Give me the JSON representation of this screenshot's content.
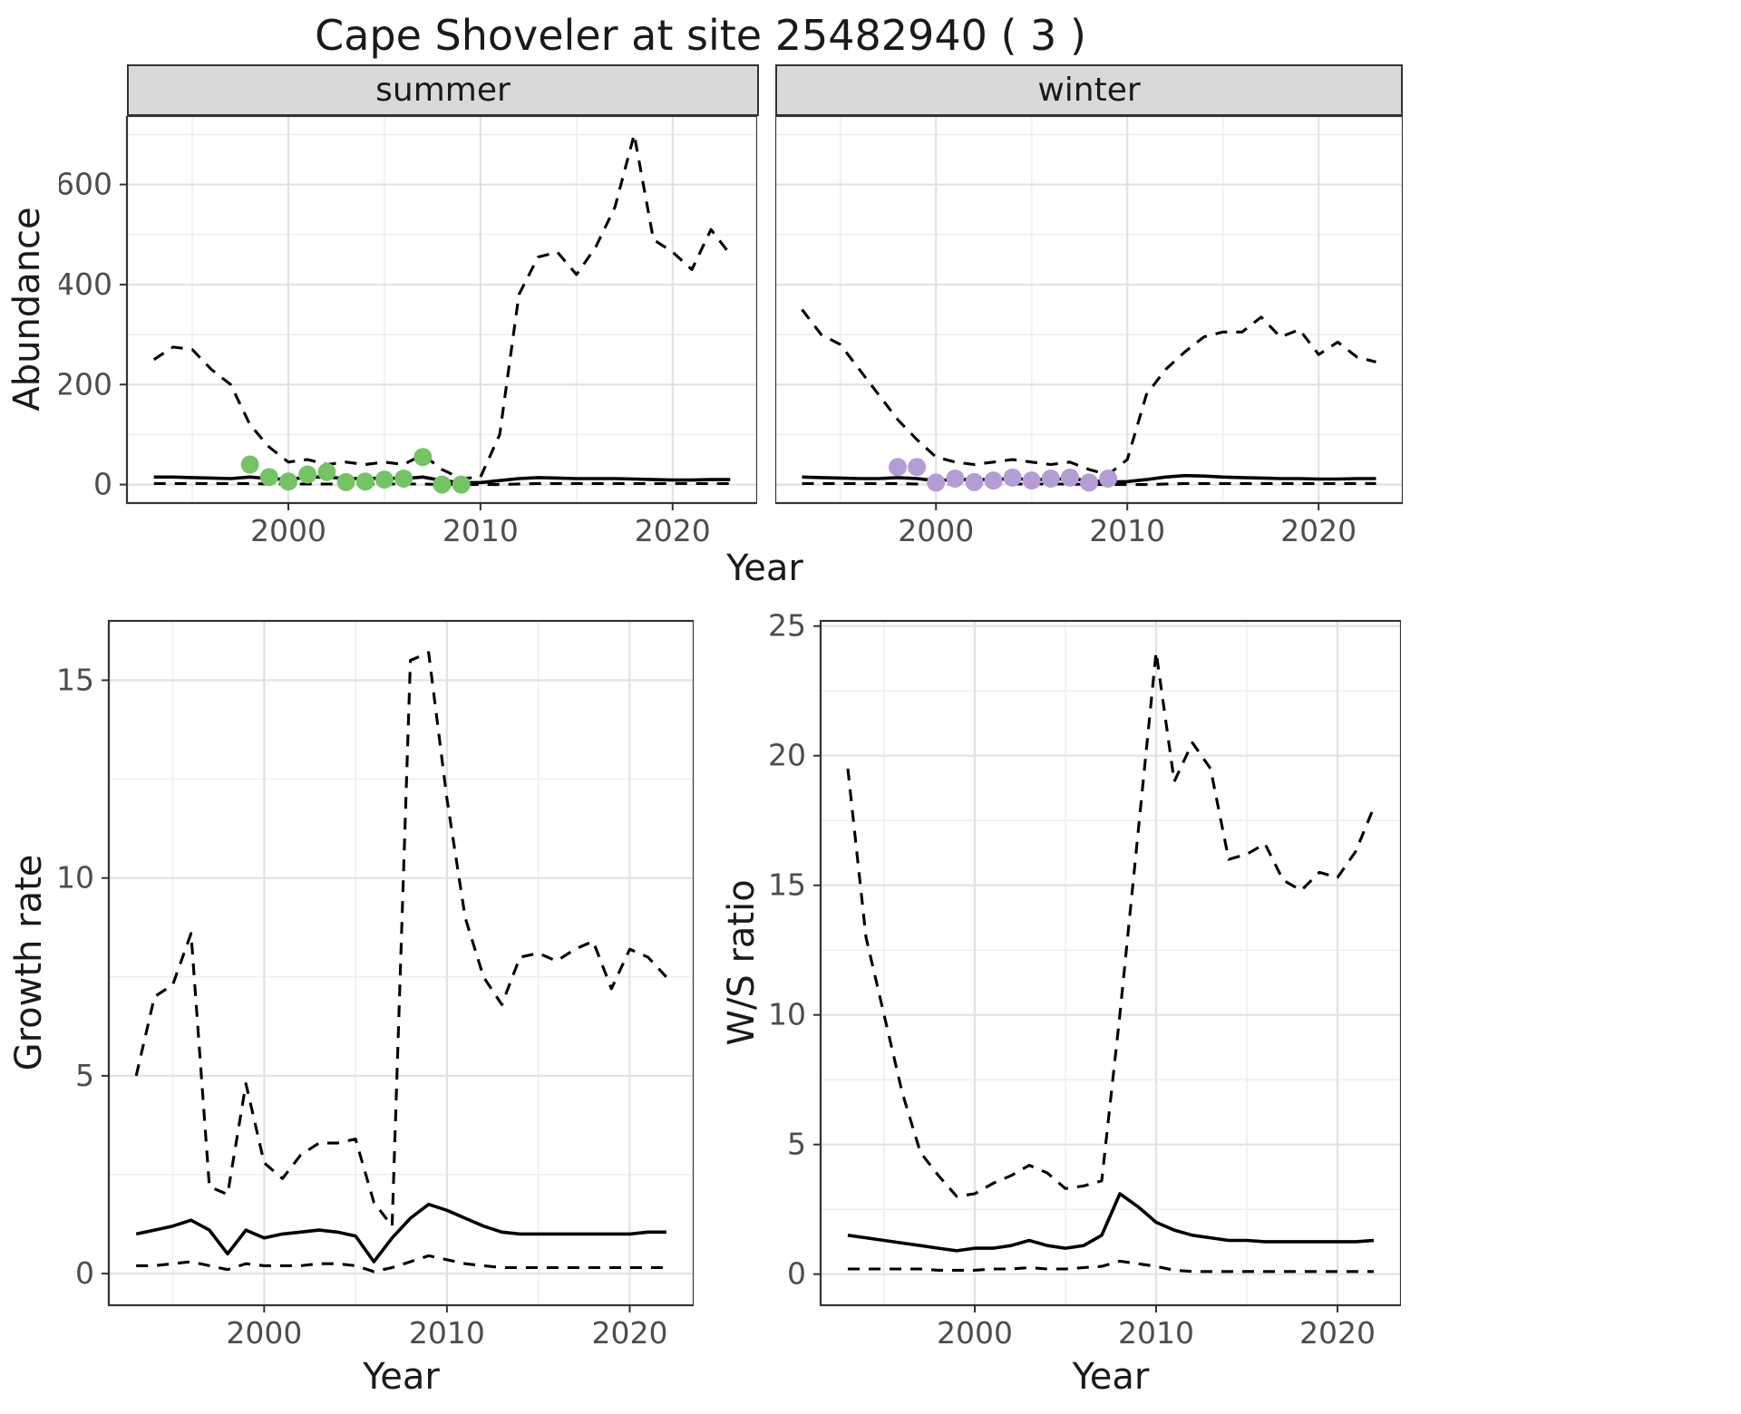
{
  "title": "Cape Shoveler at site 25482940 ( 3 )",
  "facets": {
    "summer_label": "summer",
    "winter_label": "winter"
  },
  "axis_titles": {
    "abundance": "Abundance",
    "year_top": "Year",
    "growth_rate": "Growth rate",
    "ws_ratio": "W/S ratio",
    "year_growth": "Year",
    "year_ws": "Year"
  },
  "colors": {
    "summer_points": "#76c366",
    "winter_points": "#b69cd4",
    "line": "#000000",
    "strip_bg": "#d9d9d9",
    "grid_major": "#e2e2e2",
    "grid_minor": "#efefef",
    "panel_border": "#333333",
    "tick_text": "#4d4d4d"
  },
  "chart_data": [
    {
      "type": "line",
      "name": "abundance-summer",
      "facet": "summer",
      "xlabel": "Year",
      "ylabel": "Abundance",
      "xlim": [
        1991.6,
        2024.4
      ],
      "ylim": [
        -37,
        737
      ],
      "x_ticks": [
        2000,
        2010,
        2020
      ],
      "x_minor": [
        1995,
        2005,
        2015
      ],
      "y_ticks": [
        0,
        200,
        400,
        600
      ],
      "y_minor": [
        100,
        300,
        500,
        700
      ],
      "x": [
        1993,
        1994,
        1995,
        1996,
        1997,
        1998,
        1999,
        2000,
        2001,
        2002,
        2003,
        2004,
        2005,
        2006,
        2007,
        2008,
        2009,
        2010,
        2011,
        2012,
        2013,
        2014,
        2015,
        2016,
        2017,
        2018,
        2019,
        2020,
        2021,
        2022,
        2023
      ],
      "series": [
        {
          "name": "upper-95ci",
          "style": "dashed",
          "values": [
            250,
            275,
            270,
            230,
            200,
            120,
            75,
            45,
            50,
            40,
            45,
            40,
            45,
            40,
            60,
            30,
            12,
            15,
            100,
            380,
            455,
            465,
            420,
            475,
            555,
            700,
            490,
            465,
            430,
            510,
            460
          ]
        },
        {
          "name": "median",
          "style": "solid",
          "values": [
            15,
            15,
            14,
            13,
            12,
            15,
            12,
            10,
            15,
            15,
            12,
            12,
            13,
            12,
            15,
            8,
            4,
            4,
            8,
            12,
            14,
            13,
            12,
            12,
            12,
            11,
            10,
            9,
            9,
            10,
            10
          ]
        },
        {
          "name": "lower-95ci",
          "style": "dashed",
          "values": [
            2,
            2,
            2,
            2,
            2,
            2,
            1,
            1,
            1,
            1,
            1,
            1,
            1,
            1,
            1,
            0,
            0,
            0,
            0,
            1,
            2,
            2,
            2,
            2,
            2,
            2,
            2,
            2,
            2,
            2,
            2
          ]
        },
        {
          "name": "observed-counts",
          "style": "points",
          "color_key": "summer_points",
          "x": [
            1998,
            1999,
            2000,
            2001,
            2002,
            2003,
            2004,
            2005,
            2006,
            2007,
            2008,
            2009
          ],
          "values": [
            40,
            15,
            6,
            20,
            25,
            5,
            6,
            10,
            12,
            55,
            0,
            0
          ]
        }
      ]
    },
    {
      "type": "line",
      "name": "abundance-winter",
      "facet": "winter",
      "xlabel": "Year",
      "ylabel": "Abundance",
      "xlim": [
        1991.6,
        2024.4
      ],
      "ylim": [
        -37,
        737
      ],
      "x_ticks": [
        2000,
        2010,
        2020
      ],
      "x_minor": [
        1995,
        2005,
        2015
      ],
      "y_ticks": [
        0,
        200,
        400,
        600
      ],
      "y_minor": [
        100,
        300,
        500,
        700
      ],
      "x": [
        1993,
        1994,
        1995,
        1996,
        1997,
        1998,
        1999,
        2000,
        2001,
        2002,
        2003,
        2004,
        2005,
        2006,
        2007,
        2008,
        2009,
        2010,
        2011,
        2012,
        2013,
        2014,
        2015,
        2016,
        2017,
        2018,
        2019,
        2020,
        2021,
        2022,
        2023
      ],
      "series": [
        {
          "name": "upper-95ci",
          "style": "dashed",
          "values": [
            350,
            300,
            280,
            230,
            180,
            130,
            90,
            55,
            45,
            40,
            45,
            50,
            45,
            40,
            45,
            30,
            20,
            50,
            180,
            230,
            265,
            295,
            305,
            305,
            335,
            295,
            310,
            260,
            285,
            255,
            245
          ]
        },
        {
          "name": "median",
          "style": "solid",
          "values": [
            15,
            14,
            13,
            12,
            12,
            14,
            12,
            8,
            10,
            10,
            10,
            12,
            10,
            10,
            12,
            8,
            5,
            6,
            10,
            15,
            18,
            17,
            15,
            14,
            13,
            12,
            12,
            11,
            11,
            12,
            12
          ]
        },
        {
          "name": "lower-95ci",
          "style": "dashed",
          "values": [
            2,
            2,
            2,
            2,
            2,
            2,
            1,
            1,
            1,
            1,
            1,
            1,
            1,
            1,
            1,
            0,
            0,
            0,
            0,
            1,
            2,
            2,
            2,
            2,
            2,
            2,
            2,
            2,
            2,
            2,
            2
          ]
        },
        {
          "name": "observed-counts",
          "style": "points",
          "color_key": "winter_points",
          "x": [
            1998,
            1999,
            2000,
            2001,
            2002,
            2003,
            2004,
            2005,
            2006,
            2007,
            2008,
            2009
          ],
          "values": [
            35,
            35,
            4,
            12,
            5,
            8,
            14,
            8,
            12,
            14,
            4,
            12
          ]
        }
      ]
    },
    {
      "type": "line",
      "name": "growth-rate",
      "xlabel": "Year",
      "ylabel": "Growth rate",
      "xlim": [
        1991.5,
        2023.5
      ],
      "ylim": [
        -0.8,
        16.5
      ],
      "x_ticks": [
        2000,
        2010,
        2020
      ],
      "x_minor": [
        1995,
        2005,
        2015
      ],
      "y_ticks": [
        0,
        5,
        10,
        15
      ],
      "y_minor": [
        2.5,
        7.5,
        12.5
      ],
      "x": [
        1993,
        1994,
        1995,
        1996,
        1997,
        1998,
        1999,
        2000,
        2001,
        2002,
        2003,
        2004,
        2005,
        2006,
        2007,
        2008,
        2009,
        2010,
        2011,
        2012,
        2013,
        2014,
        2015,
        2016,
        2017,
        2018,
        2019,
        2020,
        2021,
        2022
      ],
      "series": [
        {
          "name": "upper-95ci",
          "style": "dashed",
          "values": [
            5.0,
            7.0,
            7.3,
            8.6,
            2.2,
            2.0,
            4.8,
            2.8,
            2.4,
            3.0,
            3.3,
            3.3,
            3.4,
            1.8,
            1.2,
            15.5,
            15.7,
            12.0,
            9.0,
            7.5,
            6.8,
            8.0,
            8.1,
            7.9,
            8.2,
            8.4,
            7.2,
            8.2,
            8.0,
            7.5
          ]
        },
        {
          "name": "median",
          "style": "solid",
          "values": [
            1.0,
            1.1,
            1.2,
            1.35,
            1.1,
            0.5,
            1.1,
            0.9,
            1.0,
            1.05,
            1.1,
            1.05,
            0.95,
            0.3,
            0.9,
            1.4,
            1.75,
            1.6,
            1.4,
            1.2,
            1.05,
            1.0,
            1.0,
            1.0,
            1.0,
            1.0,
            1.0,
            1.0,
            1.05,
            1.05
          ]
        },
        {
          "name": "lower-95ci",
          "style": "dashed",
          "values": [
            0.2,
            0.2,
            0.25,
            0.3,
            0.2,
            0.1,
            0.25,
            0.2,
            0.2,
            0.2,
            0.25,
            0.25,
            0.2,
            0.05,
            0.15,
            0.3,
            0.45,
            0.35,
            0.25,
            0.2,
            0.15,
            0.15,
            0.15,
            0.15,
            0.15,
            0.15,
            0.15,
            0.15,
            0.15,
            0.15
          ]
        }
      ]
    },
    {
      "type": "line",
      "name": "ws-ratio",
      "xlabel": "Year",
      "ylabel": "W/S ratio",
      "xlim": [
        1991.5,
        2023.5
      ],
      "ylim": [
        -1.2,
        25.2
      ],
      "x_ticks": [
        2000,
        2010,
        2020
      ],
      "x_minor": [
        1995,
        2005,
        2015
      ],
      "y_ticks": [
        0,
        5,
        10,
        15,
        20,
        25
      ],
      "y_minor": [
        2.5,
        7.5,
        12.5,
        17.5,
        22.5
      ],
      "x": [
        1993,
        1994,
        1995,
        1996,
        1997,
        1998,
        1999,
        2000,
        2001,
        2002,
        2003,
        2004,
        2005,
        2006,
        2007,
        2008,
        2009,
        2010,
        2011,
        2012,
        2013,
        2014,
        2015,
        2016,
        2017,
        2018,
        2019,
        2020,
        2021,
        2022
      ],
      "series": [
        {
          "name": "upper-95ci",
          "style": "dashed",
          "values": [
            19.5,
            13.0,
            10.0,
            7.0,
            4.7,
            3.8,
            3.0,
            3.1,
            3.5,
            3.8,
            4.2,
            3.9,
            3.3,
            3.4,
            3.6,
            10.0,
            17.0,
            24.0,
            19.0,
            20.5,
            19.5,
            16.0,
            16.2,
            16.6,
            15.2,
            14.8,
            15.5,
            15.3,
            16.3,
            18.0
          ]
        },
        {
          "name": "median",
          "style": "solid",
          "values": [
            1.5,
            1.4,
            1.3,
            1.2,
            1.1,
            1.0,
            0.9,
            1.0,
            1.0,
            1.1,
            1.3,
            1.1,
            1.0,
            1.1,
            1.5,
            3.1,
            2.6,
            2.0,
            1.7,
            1.5,
            1.4,
            1.3,
            1.3,
            1.25,
            1.25,
            1.25,
            1.25,
            1.25,
            1.25,
            1.3
          ]
        },
        {
          "name": "lower-95ci",
          "style": "dashed",
          "values": [
            0.2,
            0.2,
            0.2,
            0.2,
            0.2,
            0.15,
            0.15,
            0.15,
            0.2,
            0.2,
            0.25,
            0.2,
            0.2,
            0.25,
            0.3,
            0.5,
            0.4,
            0.3,
            0.15,
            0.1,
            0.1,
            0.1,
            0.1,
            0.1,
            0.1,
            0.1,
            0.1,
            0.1,
            0.1,
            0.1
          ]
        }
      ]
    }
  ]
}
